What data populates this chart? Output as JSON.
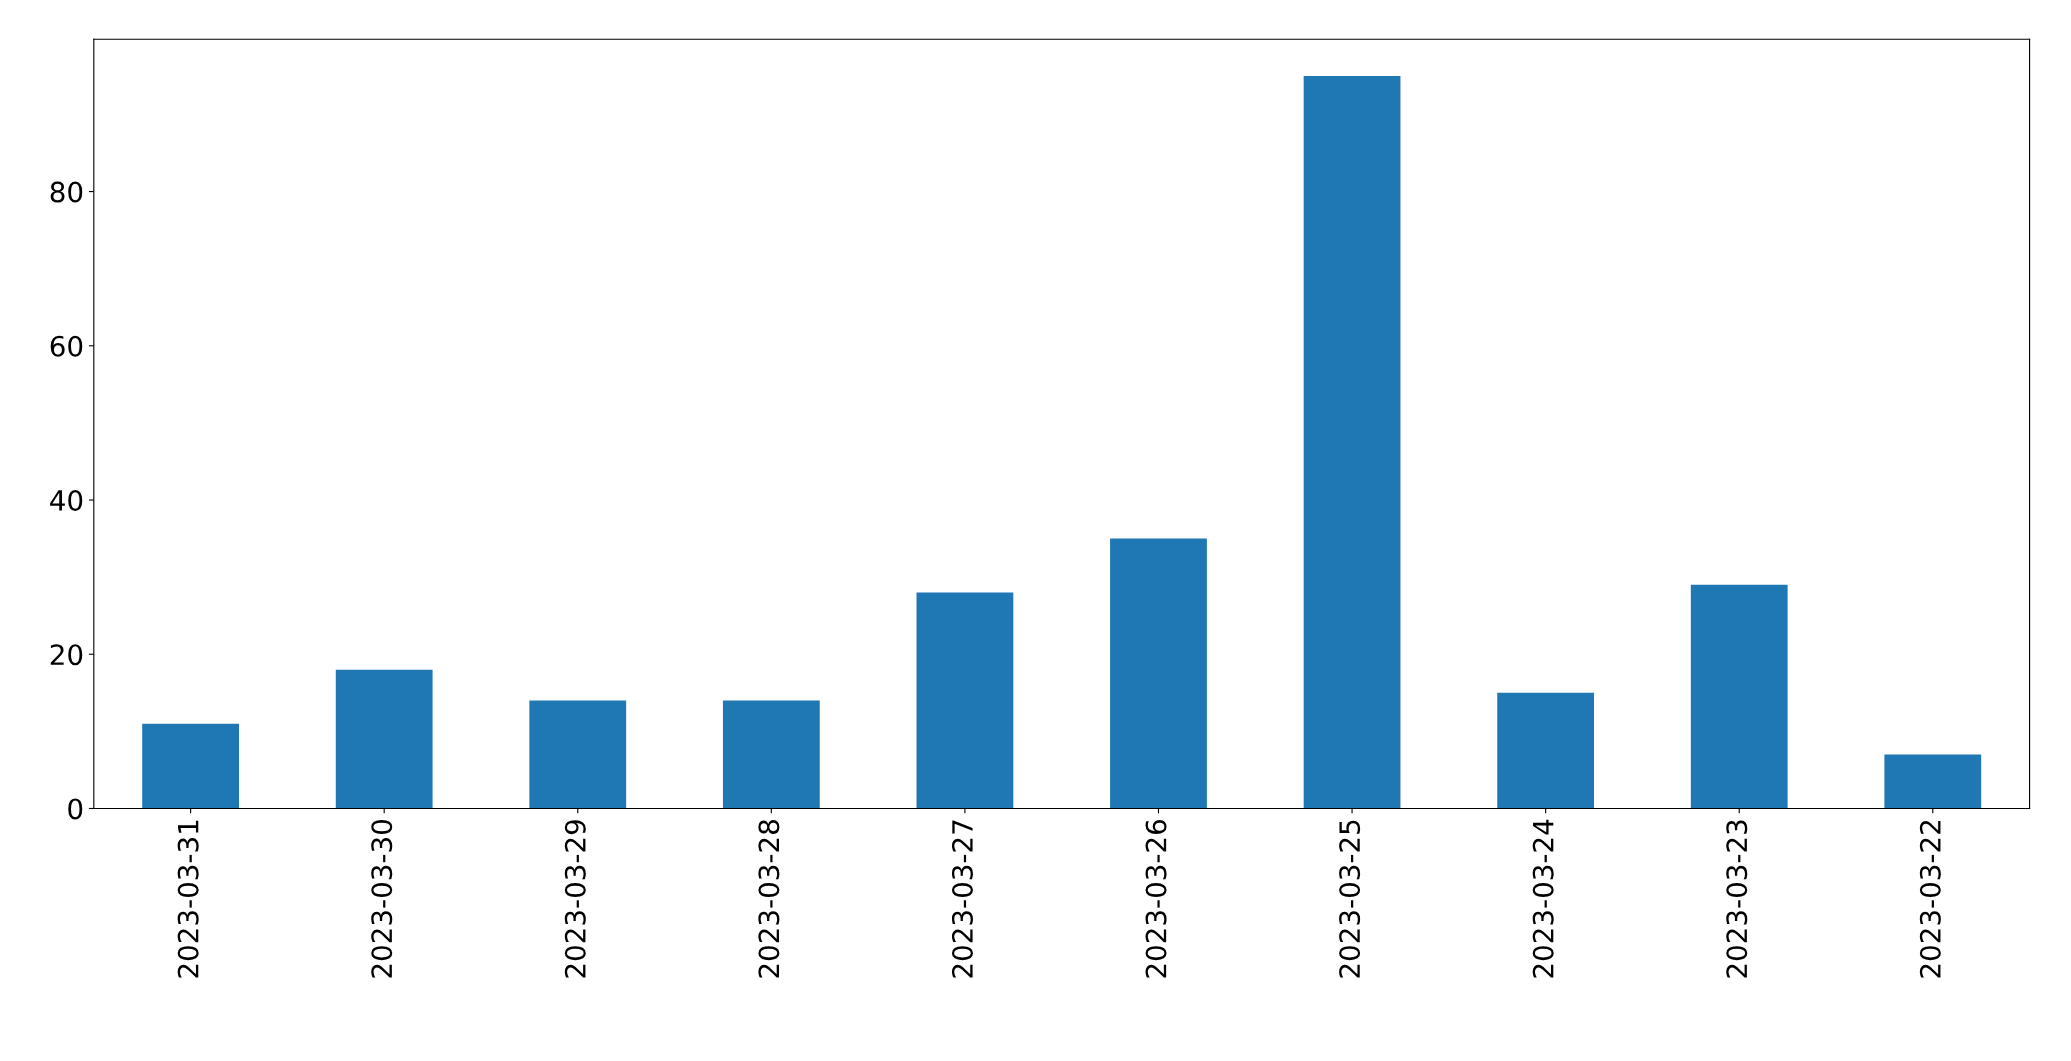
{
  "chart_data": {
    "type": "bar",
    "categories": [
      "2023-03-31",
      "2023-03-30",
      "2023-03-29",
      "2023-03-28",
      "2023-03-27",
      "2023-03-26",
      "2023-03-25",
      "2023-03-24",
      "2023-03-23",
      "2023-03-22"
    ],
    "values": [
      11,
      18,
      14,
      14,
      28,
      35,
      95,
      15,
      29,
      7
    ],
    "color": "#1f77b4",
    "ylim": [
      0,
      99.75
    ],
    "yticks": [
      0,
      20,
      40,
      60,
      80
    ],
    "grid": false,
    "legend": false
  }
}
